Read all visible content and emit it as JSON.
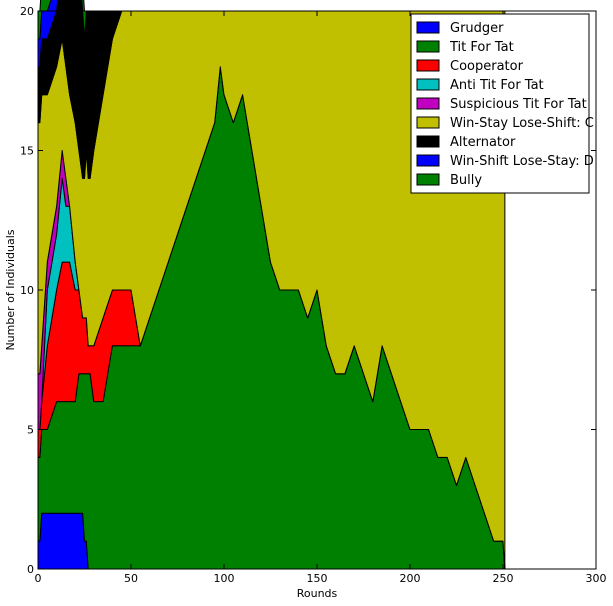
{
  "chart_data": {
    "type": "area",
    "xlabel": "Rounds",
    "ylabel": "Number of Individuals",
    "xlim": [
      0,
      300
    ],
    "ylim": [
      0,
      20
    ],
    "xticks": [
      0,
      50,
      100,
      150,
      200,
      250,
      300
    ],
    "yticks": [
      0,
      5,
      10,
      15,
      20
    ],
    "grid": false,
    "legend_position": "top-right",
    "x": [
      0,
      1,
      2,
      5,
      10,
      13,
      15,
      17,
      20,
      22,
      24,
      25,
      26,
      27,
      28,
      30,
      35,
      40,
      45,
      50,
      55,
      60,
      65,
      70,
      75,
      80,
      85,
      90,
      95,
      98,
      100,
      105,
      110,
      115,
      120,
      125,
      130,
      135,
      140,
      145,
      150,
      155,
      160,
      165,
      170,
      175,
      180,
      185,
      190,
      195,
      200,
      205,
      210,
      215,
      220,
      225,
      230,
      235,
      240,
      245,
      250,
      251
    ],
    "series": [
      {
        "name": "Grudger",
        "color": "#0000ff",
        "values": [
          1,
          1,
          2,
          2,
          2,
          2,
          2,
          2,
          2,
          2,
          2,
          1,
          1,
          0,
          0,
          0,
          0,
          0,
          0,
          0,
          0,
          0,
          0,
          0,
          0,
          0,
          0,
          0,
          0,
          0,
          0,
          0,
          0,
          0,
          0,
          0,
          0,
          0,
          0,
          0,
          0,
          0,
          0,
          0,
          0,
          0,
          0,
          0,
          0,
          0,
          0,
          0,
          0,
          0,
          0,
          0,
          0,
          0,
          0,
          0,
          0,
          0
        ]
      },
      {
        "name": "Tit For Tat",
        "color": "#008000",
        "values": [
          3,
          3,
          3,
          3,
          4,
          4,
          4,
          4,
          4,
          5,
          5,
          6,
          6,
          7,
          7,
          6,
          6,
          8,
          8,
          8,
          8,
          9,
          10,
          11,
          12,
          13,
          14,
          15,
          16,
          18,
          17,
          16,
          17,
          15,
          13,
          11,
          10,
          10,
          10,
          9,
          10,
          8,
          7,
          7,
          8,
          7,
          6,
          8,
          7,
          6,
          5,
          5,
          5,
          4,
          4,
          3,
          4,
          3,
          2,
          1,
          1,
          0
        ]
      },
      {
        "name": "Cooperator",
        "color": "#ff0000",
        "values": [
          1,
          1,
          1,
          3,
          4,
          5,
          5,
          5,
          4,
          3,
          2,
          2,
          2,
          1,
          1,
          2,
          3,
          2,
          2,
          2,
          0,
          0,
          0,
          0,
          0,
          0,
          0,
          0,
          0,
          0,
          0,
          0,
          0,
          0,
          0,
          0,
          0,
          0,
          0,
          0,
          0,
          0,
          0,
          0,
          0,
          0,
          0,
          0,
          0,
          0,
          0,
          0,
          0,
          0,
          0,
          0,
          0,
          0,
          0,
          0,
          0,
          0
        ]
      },
      {
        "name": "Anti Tit For Tat",
        "color": "#00c0c0",
        "values": [
          0,
          0,
          0,
          2,
          2,
          3,
          2,
          2,
          1,
          0,
          0,
          0,
          0,
          0,
          0,
          0,
          0,
          0,
          0,
          0,
          0,
          0,
          0,
          0,
          0,
          0,
          0,
          0,
          0,
          0,
          0,
          0,
          0,
          0,
          0,
          0,
          0,
          0,
          0,
          0,
          0,
          0,
          0,
          0,
          0,
          0,
          0,
          0,
          0,
          0,
          0,
          0,
          0,
          0,
          0,
          0,
          0,
          0,
          0,
          0,
          0,
          0
        ]
      },
      {
        "name": "Suspicious Tit For Tat",
        "color": "#c000c0",
        "values": [
          2,
          2,
          2,
          1,
          1,
          1,
          1,
          0,
          0,
          0,
          0,
          0,
          0,
          0,
          0,
          0,
          0,
          0,
          0,
          0,
          0,
          0,
          0,
          0,
          0,
          0,
          0,
          0,
          0,
          0,
          0,
          0,
          0,
          0,
          0,
          0,
          0,
          0,
          0,
          0,
          0,
          0,
          0,
          0,
          0,
          0,
          0,
          0,
          0,
          0,
          0,
          0,
          0,
          0,
          0,
          0,
          0,
          0,
          0,
          0,
          0,
          0
        ]
      },
      {
        "name": "Win-Stay Lose-Shift: C",
        "color": "#c0c000",
        "values": [
          9,
          9,
          9,
          6,
          5,
          4,
          4,
          4,
          5,
          5,
          5,
          5,
          6,
          6,
          6,
          7,
          8,
          9,
          10,
          10,
          12,
          11,
          10,
          9,
          8,
          7,
          6,
          5,
          4,
          2,
          3,
          4,
          3,
          5,
          7,
          9,
          10,
          10,
          10,
          11,
          10,
          12,
          13,
          13,
          12,
          13,
          14,
          12,
          13,
          14,
          15,
          15,
          15,
          16,
          16,
          17,
          16,
          17,
          18,
          19,
          19,
          20
        ]
      },
      {
        "name": "Alternator",
        "color": "#000000",
        "values": [
          2,
          2,
          2,
          2,
          2,
          3,
          4,
          5,
          6,
          6,
          6,
          5,
          5,
          6,
          6,
          5,
          3,
          1,
          0,
          0,
          0,
          0,
          0,
          0,
          0,
          0,
          0,
          0,
          0,
          0,
          0,
          0,
          0,
          0,
          0,
          0,
          0,
          0,
          0,
          0,
          0,
          0,
          0,
          0,
          0,
          0,
          0,
          0,
          0,
          0,
          0,
          0,
          0,
          0,
          0,
          0,
          0,
          0,
          0,
          0,
          0,
          0
        ]
      },
      {
        "name": "Win-Shift Lose-Stay: D",
        "color": "#0000ff",
        "values": [
          1,
          1,
          1,
          1,
          1,
          1,
          1,
          1,
          1,
          1,
          0,
          0,
          0,
          0,
          0,
          0,
          0,
          0,
          0,
          0,
          0,
          0,
          0,
          0,
          0,
          0,
          0,
          0,
          0,
          0,
          0,
          0,
          0,
          0,
          0,
          0,
          0,
          0,
          0,
          0,
          0,
          0,
          0,
          0,
          0,
          0,
          0,
          0,
          0,
          0,
          0,
          0,
          0,
          0,
          0,
          0,
          0,
          0,
          0,
          0,
          0,
          0
        ]
      },
      {
        "name": "Bully",
        "color": "#008000",
        "values": [
          1,
          1,
          1,
          1,
          1,
          1,
          1,
          1,
          1,
          1,
          1,
          1,
          0,
          0,
          0,
          0,
          0,
          0,
          0,
          0,
          0,
          0,
          0,
          0,
          0,
          0,
          0,
          0,
          0,
          0,
          0,
          0,
          0,
          0,
          0,
          0,
          0,
          0,
          0,
          0,
          0,
          0,
          0,
          0,
          0,
          0,
          0,
          0,
          0,
          0,
          0,
          0,
          0,
          0,
          0,
          0,
          0,
          0,
          0,
          0,
          0,
          0
        ]
      }
    ]
  }
}
